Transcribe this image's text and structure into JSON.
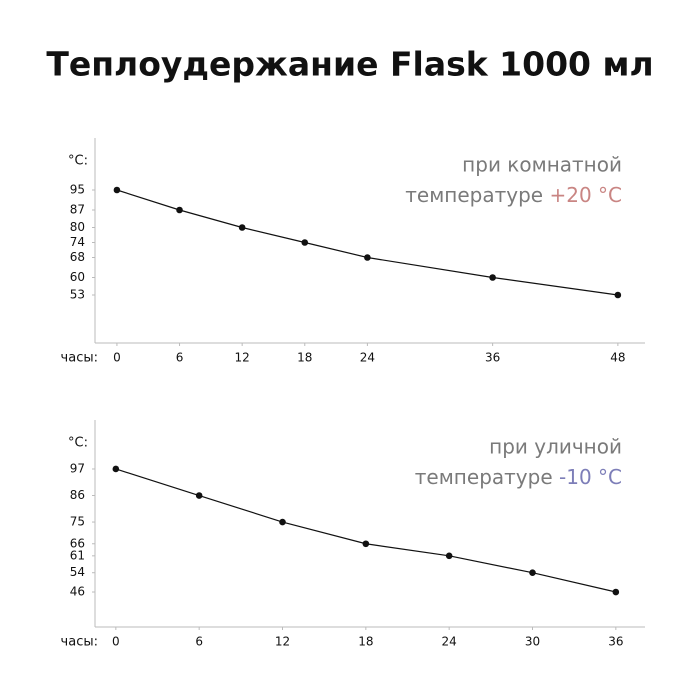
{
  "title": "Теплоудержание Flask 1000 мл",
  "chart_data": [
    {
      "type": "line",
      "y_label": "°C:",
      "x_label": "часы:",
      "annotation": {
        "lines": [
          "при комнатной",
          "температуре"
        ],
        "highlight": "+20 °C",
        "highlight_color": "#c98583"
      },
      "x": [
        0,
        6,
        12,
        18,
        24,
        36,
        48
      ],
      "series": [
        {
          "color": "#111111",
          "values": [
            95,
            87,
            80,
            74,
            68,
            60,
            53
          ]
        }
      ],
      "xlim": [
        -2.1,
        50.6
      ],
      "ylim": [
        33.8,
        115.8
      ],
      "xticks": [
        0,
        6,
        12,
        18,
        24,
        36,
        48
      ],
      "yticks": [
        95,
        87,
        80,
        74,
        68,
        60,
        53
      ],
      "grid": false
    },
    {
      "type": "line",
      "y_label": "°C:",
      "x_label": "часы:",
      "annotation": {
        "lines": [
          "при уличной",
          "температуре"
        ],
        "highlight": "-10 °C",
        "highlight_color": "#7d7eb8"
      },
      "x": [
        0,
        6,
        12,
        18,
        24,
        30,
        36
      ],
      "series": [
        {
          "color": "#111111",
          "values": [
            97,
            86,
            75,
            66,
            61,
            54,
            46
          ]
        }
      ],
      "xlim": [
        -1.5,
        38.1
      ],
      "ylim": [
        31.5,
        117.3
      ],
      "xticks": [
        0,
        6,
        12,
        18,
        24,
        30,
        36
      ],
      "yticks": [
        97,
        86,
        75,
        66,
        61,
        54,
        46
      ],
      "grid": false
    }
  ]
}
